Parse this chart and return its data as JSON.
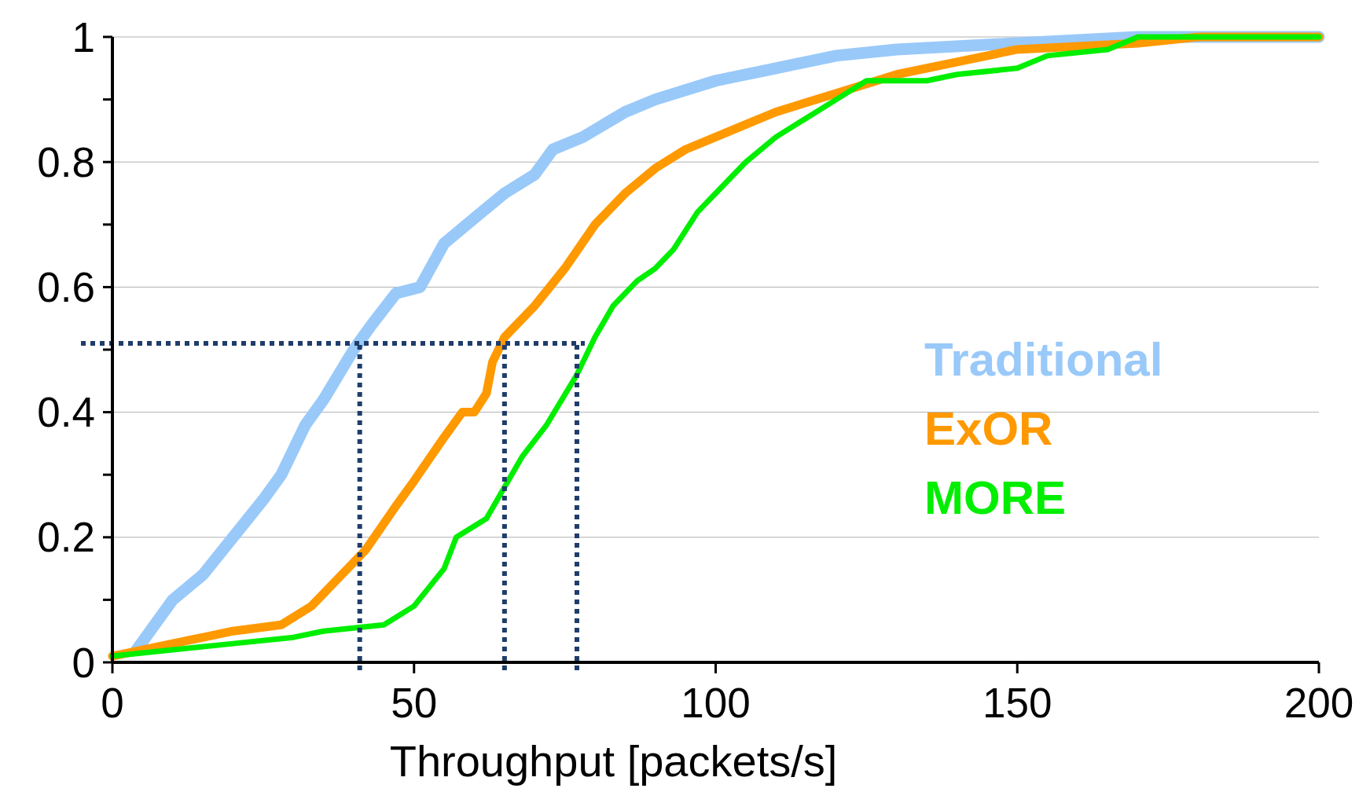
{
  "chart_data": {
    "type": "line",
    "xlabel": "Throughput [packets/s]",
    "xlim": [
      0,
      200
    ],
    "xticks": [
      0,
      50,
      100,
      150,
      200
    ],
    "ylim": [
      0,
      1
    ],
    "yticks": [
      0,
      0.2,
      0.4,
      0.6,
      0.8,
      1
    ],
    "grid": "y",
    "legend": "right",
    "marker": "none",
    "line_style": "solid",
    "series": [
      {
        "name": "Traditional",
        "color": "#99c9f9",
        "x": [
          4,
          10,
          15,
          20,
          25,
          28,
          32,
          35,
          40,
          43,
          47,
          51,
          55,
          60,
          65,
          70,
          73,
          78,
          85,
          90,
          100,
          110,
          120,
          130,
          150,
          170,
          200
        ],
        "values": [
          0.02,
          0.1,
          0.14,
          0.2,
          0.26,
          0.3,
          0.38,
          0.42,
          0.5,
          0.54,
          0.59,
          0.6,
          0.67,
          0.71,
          0.75,
          0.78,
          0.82,
          0.84,
          0.88,
          0.9,
          0.93,
          0.95,
          0.97,
          0.98,
          0.99,
          1,
          1
        ]
      },
      {
        "name": "ExOR",
        "color": "#ff9900",
        "x": [
          0,
          5,
          10,
          20,
          28,
          33,
          37,
          42,
          47,
          50,
          55,
          58,
          60,
          62,
          63,
          65,
          70,
          75,
          80,
          85,
          90,
          95,
          100,
          105,
          110,
          120,
          130,
          140,
          150,
          170,
          180,
          200
        ],
        "values": [
          0.01,
          0.02,
          0.03,
          0.05,
          0.06,
          0.09,
          0.13,
          0.18,
          0.25,
          0.29,
          0.36,
          0.4,
          0.4,
          0.43,
          0.48,
          0.52,
          0.57,
          0.63,
          0.7,
          0.75,
          0.79,
          0.82,
          0.84,
          0.86,
          0.88,
          0.91,
          0.94,
          0.96,
          0.98,
          0.99,
          1,
          1
        ]
      },
      {
        "name": "MORE",
        "color": "#00ee00",
        "x": [
          0,
          10,
          20,
          30,
          35,
          45,
          50,
          55,
          57,
          62,
          65,
          68,
          72,
          77,
          80,
          83,
          87,
          90,
          93,
          97,
          100,
          105,
          110,
          115,
          120,
          125,
          135,
          140,
          150,
          155,
          165,
          170,
          200
        ],
        "values": [
          0.01,
          0.02,
          0.03,
          0.04,
          0.05,
          0.06,
          0.09,
          0.15,
          0.2,
          0.23,
          0.28,
          0.33,
          0.38,
          0.46,
          0.52,
          0.57,
          0.61,
          0.63,
          0.66,
          0.72,
          0.75,
          0.8,
          0.84,
          0.87,
          0.9,
          0.93,
          0.93,
          0.94,
          0.95,
          0.97,
          0.98,
          1,
          1
        ]
      }
    ],
    "ref_lines": [
      {
        "axis": "y",
        "value": 0.51,
        "color": "#1f3d6b",
        "line_style": "dotted"
      },
      {
        "axis": "x",
        "value": 41,
        "color": "#1f3d6b",
        "line_style": "dotted"
      },
      {
        "axis": "x",
        "value": 65,
        "color": "#1f3d6b",
        "line_style": "dotted"
      },
      {
        "axis": "x",
        "value": 77,
        "color": "#1f3d6b",
        "line_style": "dotted"
      }
    ]
  }
}
